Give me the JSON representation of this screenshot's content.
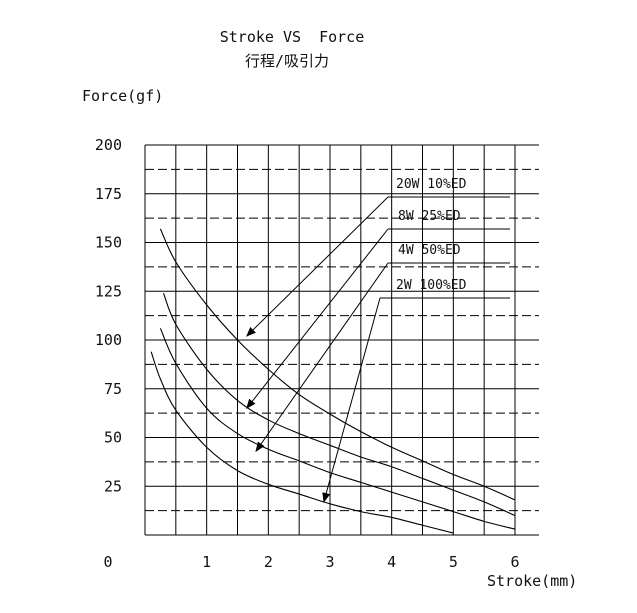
{
  "chart_data": {
    "type": "line",
    "title": "Stroke VS  Force",
    "subtitle": "行程/吸引力",
    "xlabel": "Stroke(mm)",
    "ylabel": "Force(gf)",
    "xlim": [
      0,
      6
    ],
    "ylim": [
      0,
      200
    ],
    "x_ticks": [
      "0",
      "1",
      "2",
      "3",
      "4",
      "5",
      "6"
    ],
    "y_ticks": [
      "25",
      "50",
      "75",
      "100",
      "125",
      "150",
      "175",
      "200"
    ],
    "grid": true,
    "legend_placement": "top-right (labels with leader arrows)",
    "colors": {
      "line": "#000000",
      "background": "#ffffff"
    },
    "series": [
      {
        "name": "20W  10%ED",
        "x": [
          0.25,
          0.5,
          1.0,
          1.5,
          2.0,
          2.5,
          3.0,
          3.5,
          4.0,
          4.5,
          5.0,
          5.5,
          6.0
        ],
        "y": [
          157,
          140,
          118,
          100,
          85,
          72,
          62,
          53,
          45,
          38,
          31,
          25,
          18
        ]
      },
      {
        "name": "8W 25%ED",
        "x": [
          0.3,
          0.5,
          1.0,
          1.5,
          2.0,
          2.5,
          3.0,
          3.5,
          4.0,
          4.5,
          5.0,
          5.5,
          6.0
        ],
        "y": [
          124,
          108,
          85,
          69,
          59,
          52,
          46,
          40,
          35,
          29,
          23,
          17,
          10
        ]
      },
      {
        "name": "4W  50%ED",
        "x": [
          0.25,
          0.5,
          1.0,
          1.5,
          2.0,
          2.5,
          3.0,
          3.5,
          4.0,
          4.5,
          5.0,
          5.5,
          6.0
        ],
        "y": [
          106,
          88,
          65,
          52,
          44,
          38,
          32,
          27,
          22,
          17,
          12,
          7,
          3
        ]
      },
      {
        "name": "2W 100%ED",
        "x": [
          0.1,
          0.25,
          0.5,
          1.0,
          1.5,
          2.0,
          2.5,
          3.0,
          3.5,
          4.0,
          4.5,
          5.0
        ],
        "y": [
          94,
          80,
          64,
          45,
          33,
          26,
          21,
          16,
          12,
          9,
          5,
          1
        ]
      }
    ],
    "annotations": [
      {
        "label": "20W  10%ED",
        "points_to": {
          "x": 1.65,
          "y": 102
        }
      },
      {
        "label": "8W 25%ED",
        "points_to": {
          "x": 1.65,
          "y": 65
        }
      },
      {
        "label": "4W  50%ED",
        "points_to": {
          "x": 1.8,
          "y": 43
        }
      },
      {
        "label": "2W 100%ED",
        "points_to": {
          "x": 2.9,
          "y": 17
        }
      }
    ]
  }
}
